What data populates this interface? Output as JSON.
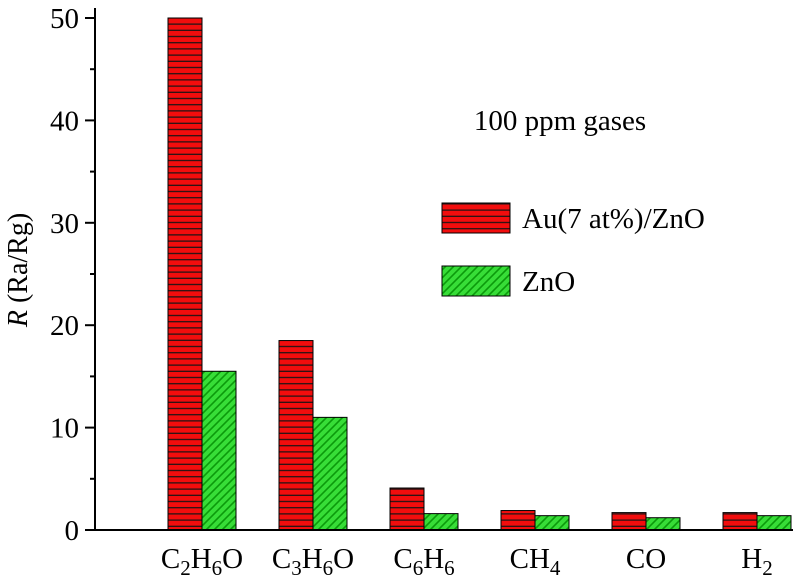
{
  "page": {
    "background": "#ffffff"
  },
  "chart_data": {
    "type": "bar",
    "title": "",
    "annotation": "100 ppm gases",
    "ylabel": "R (Ra/Rg)",
    "ylabel_parts": [
      {
        "text": "R",
        "style": "italic"
      },
      {
        "text": " (Ra/Rg)",
        "style": "normal"
      }
    ],
    "xlabel": "",
    "ylim": [
      0,
      50
    ],
    "y_major_ticks": [
      0,
      10,
      20,
      30,
      40,
      50
    ],
    "y_minor_step": 5,
    "grid": false,
    "axis_color": "#000000",
    "categories": [
      "C2H6O",
      "C3H6O",
      "C6H6",
      "CH4",
      "CO",
      "H2"
    ],
    "category_label_parts": [
      [
        [
          "C",
          0
        ],
        [
          "2",
          1
        ],
        [
          "H",
          0
        ],
        [
          "6",
          1
        ],
        [
          "O",
          0
        ]
      ],
      [
        [
          "C",
          0
        ],
        [
          "3",
          1
        ],
        [
          "H",
          0
        ],
        [
          "6",
          1
        ],
        [
          "O",
          0
        ]
      ],
      [
        [
          "C",
          0
        ],
        [
          "6",
          1
        ],
        [
          "H",
          0
        ],
        [
          "6",
          1
        ]
      ],
      [
        [
          "C",
          0
        ],
        [
          "H",
          0
        ],
        [
          "4",
          1
        ]
      ],
      [
        [
          "C",
          0
        ],
        [
          "O",
          0
        ]
      ],
      [
        [
          "H",
          0
        ],
        [
          "2",
          1
        ]
      ]
    ],
    "series": [
      {
        "name": "Au(7 at%)/ZnO",
        "color": "#f20d0d",
        "hatch": "horizontal",
        "hatch_color": "#151515",
        "values": [
          50,
          18.5,
          4.1,
          1.9,
          1.7,
          1.7
        ]
      },
      {
        "name": "ZnO",
        "color": "#37dd37",
        "hatch": "diagonal",
        "hatch_color": "#0b9a0b",
        "values": [
          15.5,
          11,
          1.6,
          1.4,
          1.2,
          1.4
        ]
      }
    ],
    "legend_position": "center-right-inside"
  }
}
